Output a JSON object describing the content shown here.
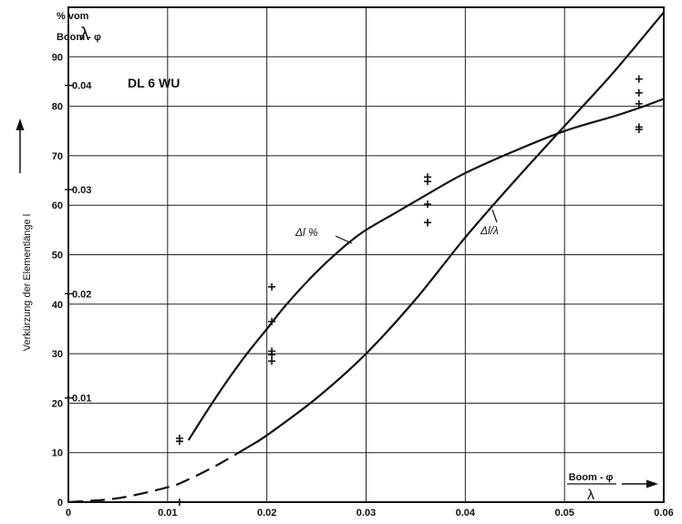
{
  "chart_data": {
    "type": "line",
    "annotation": "DL 6 WU",
    "left_axis": {
      "unit_line1": "% vom",
      "unit_line2": "Boom - φ",
      "range": [
        0,
        100
      ],
      "ticks": [
        "0",
        "10",
        "20",
        "30",
        "40",
        "50",
        "60",
        "70",
        "80",
        "90"
      ],
      "ylabel": "Verkürzung der Elementlänge l"
    },
    "right_axis": {
      "unit": "λ",
      "range": [
        0,
        0.0475
      ],
      "ticks": [
        "0.01",
        "0.02",
        "0.03",
        "0.04"
      ]
    },
    "x_axis": {
      "label_top": "Boom - φ",
      "label_bottom": "λ",
      "range": [
        0,
        0.06
      ],
      "ticks": [
        "0",
        "0.01",
        "0.02",
        "0.03",
        "0.04",
        "0.05",
        "0.06"
      ]
    },
    "grid": true,
    "series": [
      {
        "name": "Δl %",
        "axis": "left",
        "x": [
          0.0121,
          0.014,
          0.016,
          0.018,
          0.02,
          0.022,
          0.025,
          0.028,
          0.03,
          0.033,
          0.036,
          0.04,
          0.045,
          0.05,
          0.055,
          0.058,
          0.06
        ],
        "y": [
          12.5,
          18.5,
          24.5,
          30.0,
          35.0,
          40.0,
          46.5,
          52.0,
          55.0,
          58.5,
          62.0,
          66.5,
          71.0,
          75.0,
          78.0,
          80.0,
          81.5
        ]
      },
      {
        "name": "Δl/λ",
        "axis": "left",
        "x": [
          0.0,
          0.005,
          0.01,
          0.012,
          0.015,
          0.018,
          0.02,
          0.025,
          0.03,
          0.035,
          0.04,
          0.045,
          0.05,
          0.055,
          0.06
        ],
        "y": [
          0.0,
          0.8,
          3.0,
          4.5,
          7.5,
          11.0,
          13.5,
          21.0,
          30.0,
          41.0,
          53.5,
          65.0,
          76.0,
          87.0,
          99.0
        ]
      }
    ],
    "dashed_until_x": 0.018,
    "measured_points": {
      "marker": "+",
      "x": [
        0.0112,
        0.0112,
        0.0112,
        0.0205,
        0.0205,
        0.0205,
        0.0205,
        0.0205,
        0.0362,
        0.0362,
        0.0362,
        0.0362,
        0.0362,
        0.0575,
        0.0575,
        0.0575,
        0.0575,
        0.0575
      ],
      "y": [
        12.3,
        12.9,
        0.0,
        43.5,
        36.5,
        30.5,
        29.8,
        28.5,
        65.7,
        64.8,
        60.2,
        56.5,
        56.5,
        85.5,
        82.7,
        80.5,
        75.8,
        75.3
      ]
    }
  }
}
